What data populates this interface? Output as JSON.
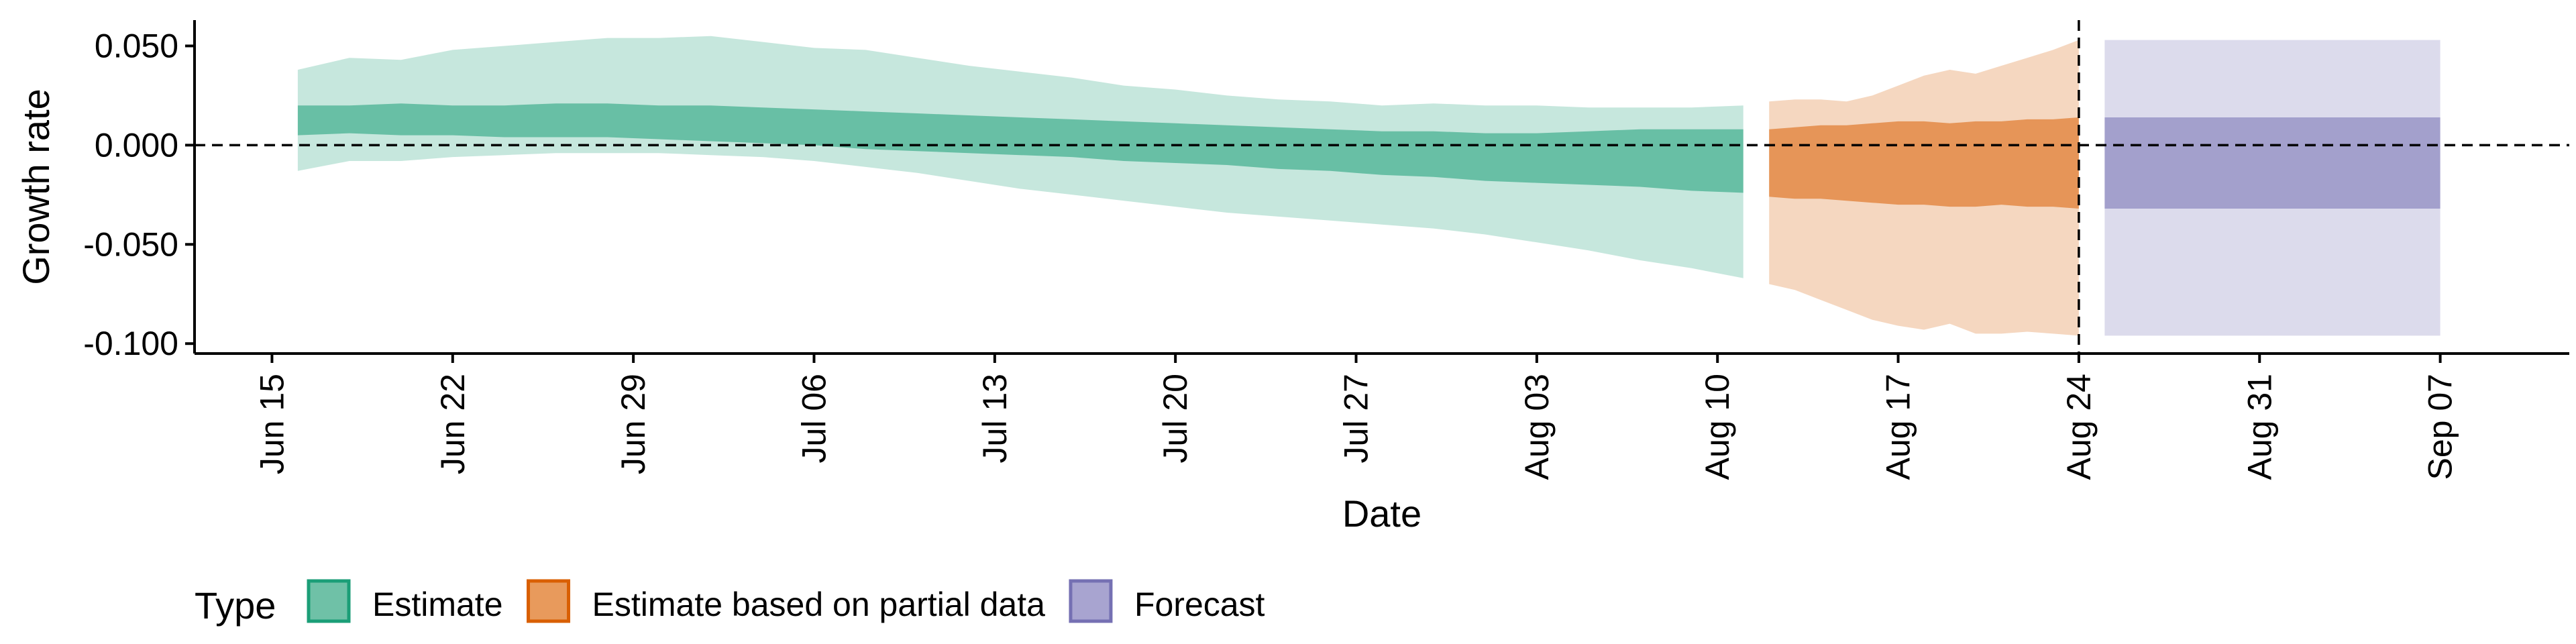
{
  "chart_data": {
    "type": "area",
    "xlabel": "Date",
    "ylabel": "Growth rate",
    "ylim": [
      -0.105,
      0.063
    ],
    "xlim": [
      "2020-06-12",
      "2020-09-12"
    ],
    "y_ticks": [
      {
        "value": 0.05,
        "label": "0.050"
      },
      {
        "value": 0.0,
        "label": "0.000"
      },
      {
        "value": -0.05,
        "label": "-0.050"
      },
      {
        "value": -0.1,
        "label": "-0.100"
      }
    ],
    "x_ticks": [
      {
        "value": "2020-06-15",
        "label": "Jun 15"
      },
      {
        "value": "2020-06-22",
        "label": "Jun 22"
      },
      {
        "value": "2020-06-29",
        "label": "Jun 29"
      },
      {
        "value": "2020-07-06",
        "label": "Jul 06"
      },
      {
        "value": "2020-07-13",
        "label": "Jul 13"
      },
      {
        "value": "2020-07-20",
        "label": "Jul 20"
      },
      {
        "value": "2020-07-27",
        "label": "Jul 27"
      },
      {
        "value": "2020-08-03",
        "label": "Aug 03"
      },
      {
        "value": "2020-08-10",
        "label": "Aug 10"
      },
      {
        "value": "2020-08-17",
        "label": "Aug 17"
      },
      {
        "value": "2020-08-24",
        "label": "Aug 24"
      },
      {
        "value": "2020-08-31",
        "label": "Aug 31"
      },
      {
        "value": "2020-09-07",
        "label": "Sep 07"
      }
    ],
    "hline": {
      "y": 0,
      "style": "dashed"
    },
    "vline": {
      "x": "2020-08-24",
      "style": "dashed"
    },
    "legend": {
      "title": "Type",
      "position": "bottom-left",
      "entries": [
        {
          "label": "Estimate",
          "fill": "#6fc1a7",
          "border": "#1b9e77"
        },
        {
          "label": "Estimate based on partial data",
          "fill": "#e89a5c",
          "border": "#d95f02"
        },
        {
          "label": "Forecast",
          "fill": "#a8a4d0",
          "border": "#7570b3"
        }
      ]
    },
    "series": [
      {
        "name": "Estimate",
        "color": "#1b9e77",
        "x": [
          "2020-06-16",
          "2020-06-18",
          "2020-06-20",
          "2020-06-22",
          "2020-06-24",
          "2020-06-26",
          "2020-06-28",
          "2020-06-30",
          "2020-07-02",
          "2020-07-04",
          "2020-07-06",
          "2020-07-08",
          "2020-07-10",
          "2020-07-12",
          "2020-07-14",
          "2020-07-16",
          "2020-07-18",
          "2020-07-20",
          "2020-07-22",
          "2020-07-24",
          "2020-07-26",
          "2020-07-28",
          "2020-07-30",
          "2020-08-01",
          "2020-08-03",
          "2020-08-05",
          "2020-08-07",
          "2020-08-09",
          "2020-08-11"
        ],
        "upper90": [
          0.038,
          0.044,
          0.043,
          0.048,
          0.05,
          0.052,
          0.054,
          0.054,
          0.055,
          0.052,
          0.049,
          0.048,
          0.044,
          0.04,
          0.037,
          0.034,
          0.03,
          0.028,
          0.025,
          0.023,
          0.022,
          0.02,
          0.021,
          0.02,
          0.02,
          0.019,
          0.019,
          0.019,
          0.02
        ],
        "upper50": [
          0.02,
          0.02,
          0.021,
          0.02,
          0.02,
          0.021,
          0.021,
          0.02,
          0.02,
          0.019,
          0.018,
          0.017,
          0.016,
          0.015,
          0.014,
          0.013,
          0.012,
          0.011,
          0.01,
          0.009,
          0.008,
          0.007,
          0.007,
          0.006,
          0.006,
          0.007,
          0.008,
          0.008,
          0.008
        ],
        "lower50": [
          0.005,
          0.006,
          0.005,
          0.005,
          0.004,
          0.004,
          0.004,
          0.003,
          0.002,
          0.001,
          0.0,
          -0.002,
          -0.003,
          -0.004,
          -0.005,
          -0.006,
          -0.008,
          -0.009,
          -0.01,
          -0.012,
          -0.013,
          -0.015,
          -0.016,
          -0.018,
          -0.019,
          -0.02,
          -0.021,
          -0.023,
          -0.024
        ],
        "lower90": [
          -0.013,
          -0.008,
          -0.008,
          -0.006,
          -0.005,
          -0.004,
          -0.004,
          -0.004,
          -0.005,
          -0.006,
          -0.008,
          -0.011,
          -0.014,
          -0.018,
          -0.022,
          -0.025,
          -0.028,
          -0.031,
          -0.034,
          -0.036,
          -0.038,
          -0.04,
          -0.042,
          -0.045,
          -0.049,
          -0.053,
          -0.058,
          -0.062,
          -0.067
        ]
      },
      {
        "name": "Estimate based on partial data",
        "color": "#d95f02",
        "x": [
          "2020-08-12",
          "2020-08-13",
          "2020-08-14",
          "2020-08-15",
          "2020-08-16",
          "2020-08-17",
          "2020-08-18",
          "2020-08-19",
          "2020-08-20",
          "2020-08-21",
          "2020-08-22",
          "2020-08-23",
          "2020-08-24"
        ],
        "upper90": [
          0.022,
          0.023,
          0.023,
          0.022,
          0.025,
          0.03,
          0.035,
          0.038,
          0.036,
          0.04,
          0.044,
          0.048,
          0.053
        ],
        "upper50": [
          0.008,
          0.009,
          0.01,
          0.01,
          0.011,
          0.012,
          0.012,
          0.011,
          0.012,
          0.012,
          0.013,
          0.013,
          0.014
        ],
        "lower50": [
          -0.026,
          -0.027,
          -0.027,
          -0.028,
          -0.029,
          -0.03,
          -0.03,
          -0.031,
          -0.031,
          -0.03,
          -0.031,
          -0.031,
          -0.032
        ],
        "lower90": [
          -0.07,
          -0.073,
          -0.078,
          -0.083,
          -0.088,
          -0.091,
          -0.093,
          -0.09,
          -0.095,
          -0.095,
          -0.094,
          -0.095,
          -0.096
        ]
      },
      {
        "name": "Forecast",
        "color": "#7570b3",
        "x": [
          "2020-08-25",
          "2020-09-07"
        ],
        "upper90": [
          0.053,
          0.053
        ],
        "upper50": [
          0.014,
          0.014
        ],
        "lower50": [
          -0.032,
          -0.032
        ],
        "lower90": [
          -0.096,
          -0.096
        ]
      }
    ]
  }
}
